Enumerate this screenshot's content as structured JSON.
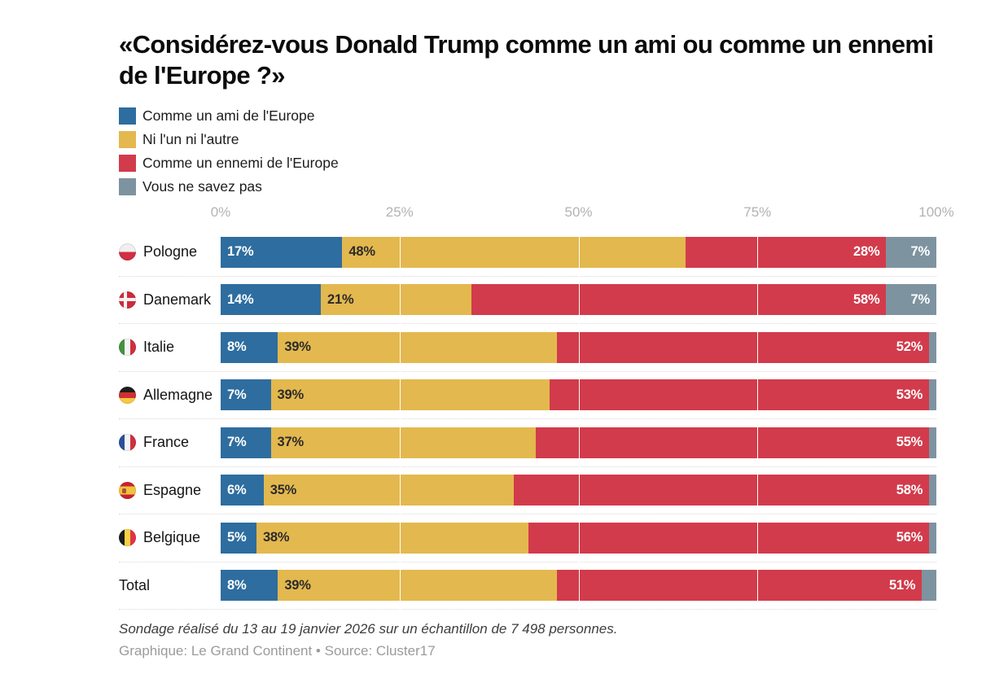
{
  "title": "«Considérez-vous Donald Trump comme un ami ou comme un ennemi de l'Europe ?»",
  "colors": {
    "ami": "#2e6d9f",
    "ni": "#e3b84e",
    "ennemi": "#d23b4b",
    "nsp": "#7e93a0"
  },
  "legend": {
    "items": [
      {
        "label": "Comme un ami de l'Europe",
        "color": "#2e6d9f"
      },
      {
        "label": "Ni l'un ni l'autre",
        "color": "#e3b84e"
      },
      {
        "label": "Comme un ennemi de l'Europe",
        "color": "#d23b4b"
      },
      {
        "label": "Vous ne savez pas",
        "color": "#7e93a0"
      }
    ]
  },
  "chart_data": {
    "type": "bar",
    "stacked": true,
    "orientation": "horizontal",
    "title": "«Considérez-vous Donald Trump comme un ami ou comme un ennemi de l'Europe ?»",
    "categories": [
      "Pologne",
      "Danemark",
      "Italie",
      "Allemagne",
      "France",
      "Espagne",
      "Belgique",
      "Total"
    ],
    "series": [
      {
        "name": "Comme un ami de l'Europe",
        "color": "#2e6d9f",
        "values": [
          17,
          14,
          8,
          7,
          7,
          6,
          5,
          8
        ]
      },
      {
        "name": "Ni l'un ni l'autre",
        "color": "#e3b84e",
        "values": [
          48,
          21,
          39,
          39,
          37,
          35,
          38,
          39
        ]
      },
      {
        "name": "Comme un ennemi de l'Europe",
        "color": "#d23b4b",
        "values": [
          28,
          58,
          52,
          53,
          55,
          58,
          56,
          51
        ]
      },
      {
        "name": "Vous ne savez pas",
        "color": "#7e93a0",
        "values": [
          7,
          7,
          1,
          1,
          1,
          1,
          1,
          2
        ]
      }
    ],
    "xlim": [
      0,
      100
    ],
    "x_ticks": [
      "0%",
      "25%",
      "50%",
      "75%",
      "100%"
    ],
    "grid": "white vertical lines at 25/50/75",
    "legend_position": "top-left"
  },
  "rows": [
    {
      "label": "Pologne",
      "flag": "poland",
      "values": [
        17,
        48,
        28,
        7
      ],
      "labels": [
        "17%",
        "48%",
        "28%",
        "7%"
      ]
    },
    {
      "label": "Danemark",
      "flag": "denmark",
      "values": [
        14,
        21,
        58,
        7
      ],
      "labels": [
        "14%",
        "21%",
        "58%",
        "7%"
      ]
    },
    {
      "label": "Italie",
      "flag": "italy",
      "values": [
        8,
        39,
        52,
        1
      ],
      "labels": [
        "8%",
        "39%",
        "52%",
        null
      ]
    },
    {
      "label": "Allemagne",
      "flag": "germany",
      "values": [
        7,
        39,
        53,
        1
      ],
      "labels": [
        "7%",
        "39%",
        "53%",
        null
      ]
    },
    {
      "label": "France",
      "flag": "france",
      "values": [
        7,
        37,
        55,
        1
      ],
      "labels": [
        "7%",
        "37%",
        "55%",
        null
      ]
    },
    {
      "label": "Espagne",
      "flag": "spain",
      "values": [
        6,
        35,
        58,
        1
      ],
      "labels": [
        "6%",
        "35%",
        "58%",
        null
      ]
    },
    {
      "label": "Belgique",
      "flag": "belgium",
      "values": [
        5,
        38,
        56,
        1
      ],
      "labels": [
        "5%",
        "38%",
        "56%",
        null
      ]
    },
    {
      "label": "Total",
      "flag": null,
      "values": [
        8,
        39,
        51,
        2
      ],
      "labels": [
        "8%",
        "39%",
        "51%",
        null
      ]
    }
  ],
  "footer": {
    "note": "Sondage réalisé du 13 au 19 janvier 2026 sur un échantillon de 7 498 personnes.",
    "credit": "Graphique: Le Grand Continent • Source: Cluster17"
  }
}
